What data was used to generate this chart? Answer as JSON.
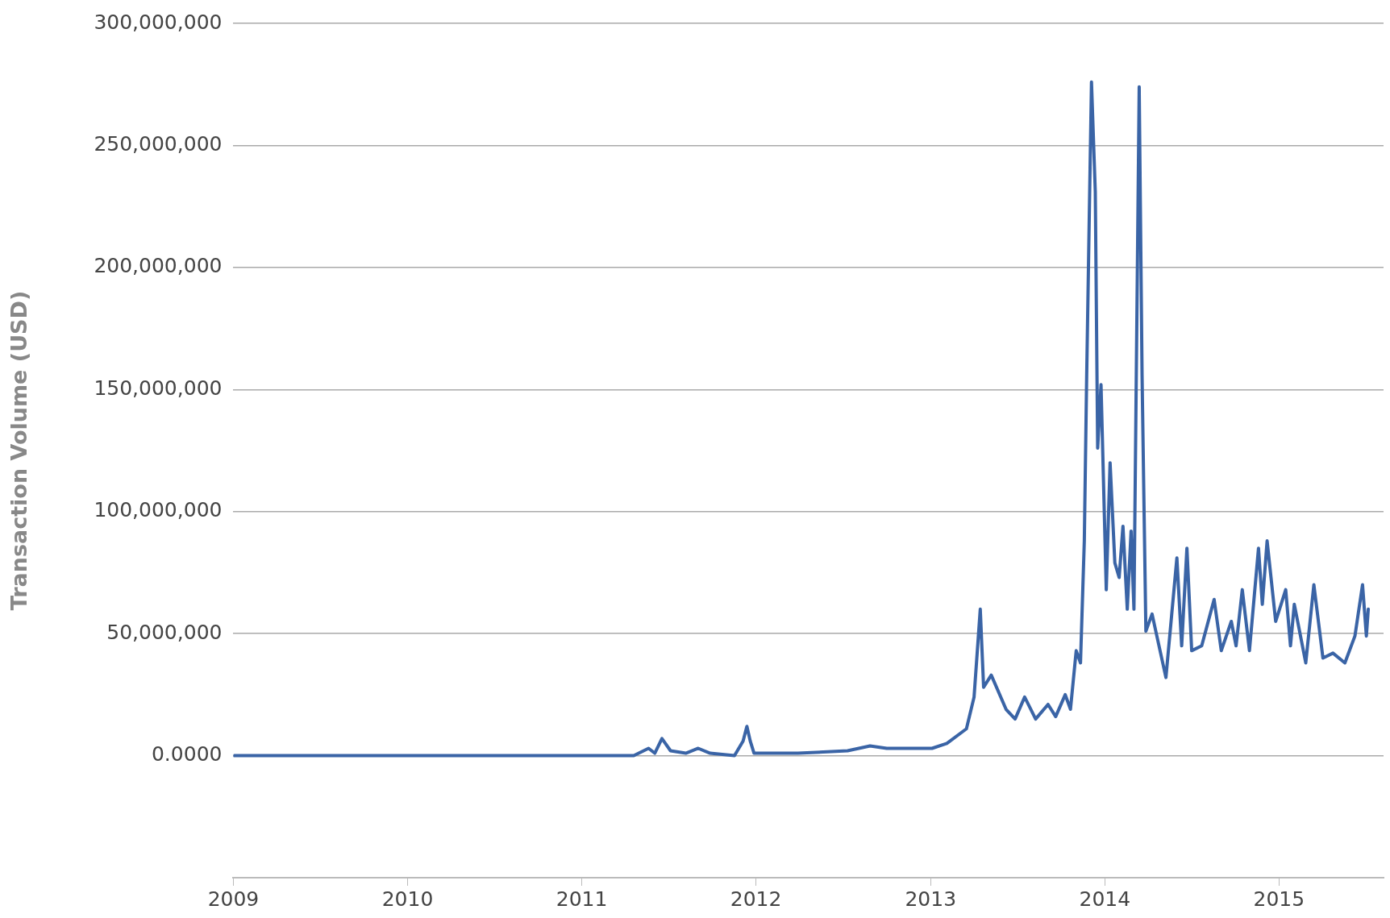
{
  "chart_data": {
    "type": "line",
    "ylabel": "Transaction Volume (USD)",
    "x": [
      "2009-01-03",
      "2011-01-01",
      "2011-04-20",
      "2011-05-21",
      "2011-06-03",
      "2011-06-18",
      "2011-07-06",
      "2011-08-07",
      "2011-09-02",
      "2011-09-27",
      "2011-11-17",
      "2011-12-05",
      "2011-12-13",
      "2011-12-20",
      "2011-12-28",
      "2012-03-29",
      "2012-07-11",
      "2012-08-27",
      "2012-10-01",
      "2012-12-02",
      "2013-01-04",
      "2013-02-04",
      "2013-03-17",
      "2013-04-02",
      "2013-04-15",
      "2013-04-22",
      "2013-05-08",
      "2013-06-08",
      "2013-06-27",
      "2013-07-17",
      "2013-08-09",
      "2013-09-04",
      "2013-09-20",
      "2013-10-10",
      "2013-10-21",
      "2013-11-02",
      "2013-11-11",
      "2013-11-19",
      "2013-11-24",
      "2013-12-04",
      "2013-12-12",
      "2013-12-17",
      "2013-12-24",
      "2014-01-04",
      "2014-01-12",
      "2014-01-22",
      "2014-01-31",
      "2014-02-08",
      "2014-02-17",
      "2014-02-25",
      "2014-03-03",
      "2014-03-14",
      "2014-03-20",
      "2014-03-28",
      "2014-04-10",
      "2014-04-20",
      "2014-05-09",
      "2014-06-01",
      "2014-06-11",
      "2014-06-22",
      "2014-07-02",
      "2014-07-23",
      "2014-08-18",
      "2014-09-02",
      "2014-09-23",
      "2014-10-03",
      "2014-10-16",
      "2014-10-31",
      "2014-11-19",
      "2014-11-27",
      "2014-12-07",
      "2014-12-25",
      "2015-01-15",
      "2015-01-25",
      "2015-02-02",
      "2015-02-26",
      "2015-03-15",
      "2015-04-03",
      "2015-04-24",
      "2015-05-19",
      "2015-06-09",
      "2015-06-25",
      "2015-07-03",
      "2015-07-07"
    ],
    "series": [
      {
        "color": "#3a64a6",
        "values": [
          0,
          0,
          0,
          3000000,
          1000000,
          7000000,
          2000000,
          1000000,
          3000000,
          1000000,
          0,
          6000000,
          12000000,
          6000000,
          1000000,
          1000000,
          2000000,
          4000000,
          3000000,
          3000000,
          3000000,
          5000000,
          11000000,
          24000000,
          60000000,
          28000000,
          33000000,
          19000000,
          15000000,
          24000000,
          15000000,
          21000000,
          16000000,
          25000000,
          19000000,
          43000000,
          38000000,
          88000000,
          156000000,
          276000000,
          231000000,
          126000000,
          152000000,
          68000000,
          120000000,
          79000000,
          73000000,
          94000000,
          60000000,
          92000000,
          60000000,
          274000000,
          156000000,
          51000000,
          58000000,
          49000000,
          32000000,
          81000000,
          45000000,
          85000000,
          43000000,
          45000000,
          64000000,
          43000000,
          55000000,
          45000000,
          68000000,
          43000000,
          85000000,
          62000000,
          88000000,
          55000000,
          68000000,
          45000000,
          62000000,
          38000000,
          70000000,
          40000000,
          42000000,
          38000000,
          49000000,
          70000000,
          49000000,
          60000000
        ]
      }
    ],
    "xlim": [
      "2009-01-01",
      "2015-08-08"
    ],
    "xticks": [
      "2009",
      "2010",
      "2011",
      "2012",
      "2013",
      "2014",
      "2015"
    ],
    "ylim": [
      -50000000,
      300000000
    ],
    "yticks": [
      {
        "value": 0,
        "label": "0.0000"
      },
      {
        "value": 50000000,
        "label": "50,000,000"
      },
      {
        "value": 100000000,
        "label": "100,000,000"
      },
      {
        "value": 150000000,
        "label": "150,000,000"
      },
      {
        "value": 200000000,
        "label": "200,000,000"
      },
      {
        "value": 250000000,
        "label": "250,000,000"
      },
      {
        "value": 300000000,
        "label": "300,000,000"
      }
    ],
    "grid": "y",
    "legend": false,
    "marker": "none",
    "line_style": "solid"
  }
}
